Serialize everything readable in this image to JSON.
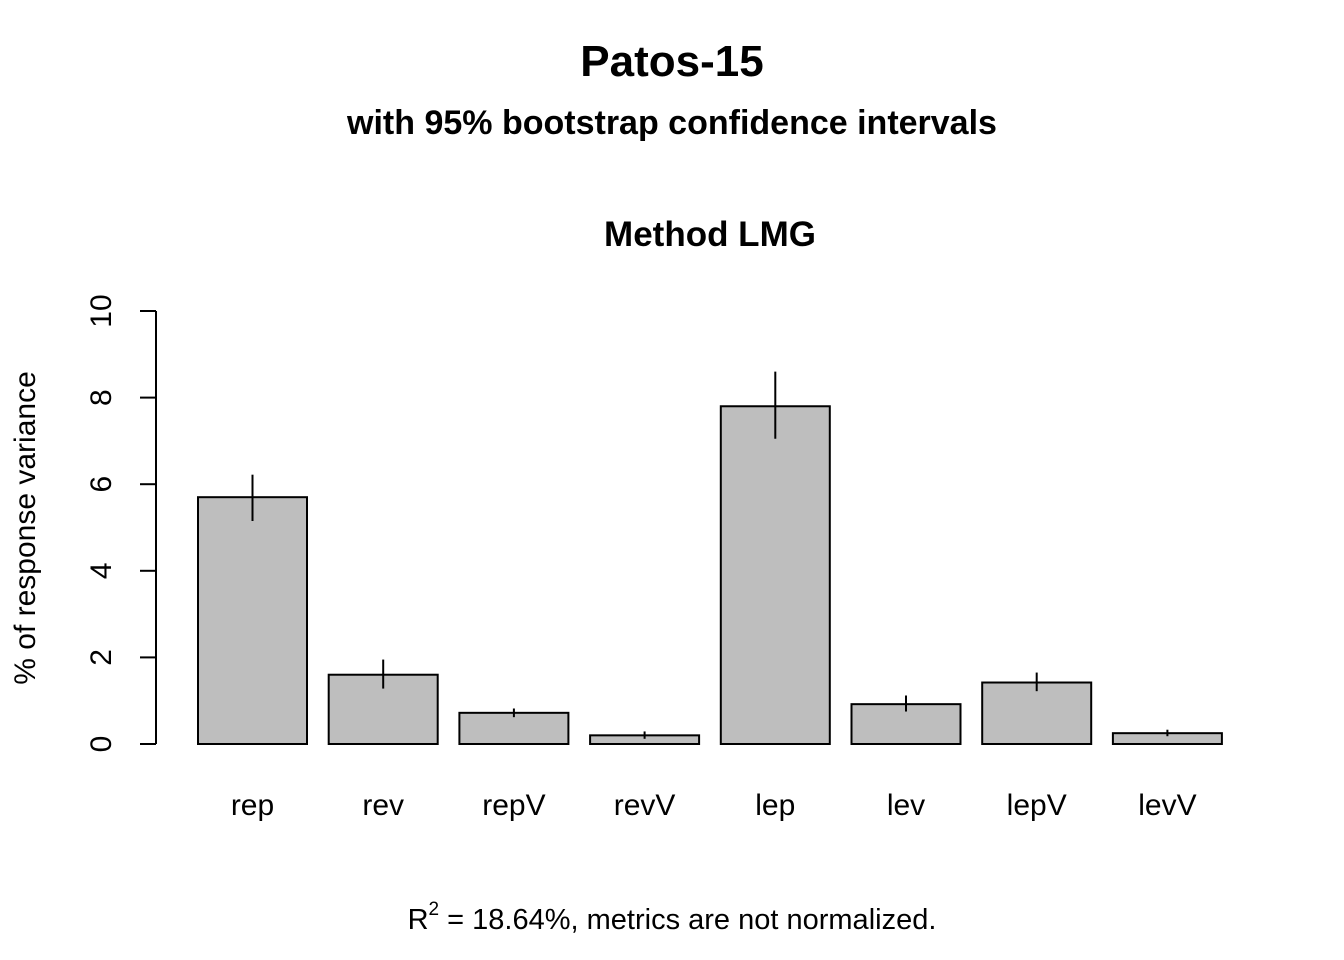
{
  "page": {
    "title": "Patos-15",
    "subtitle": "with 95% bootstrap confidence intervals",
    "footer": {
      "r_symbol": "R",
      "r_superscript": "2",
      "text": " = 18.64%, metrics are not normalized."
    }
  },
  "chart_data": {
    "type": "bar",
    "title": "Method LMG",
    "xlabel": "",
    "ylabel": "% of response variance",
    "ylim": [
      0,
      10
    ],
    "yticks": [
      0,
      2,
      4,
      6,
      8,
      10
    ],
    "grid": false,
    "categories": [
      "rep",
      "rev",
      "repV",
      "revV",
      "lep",
      "lev",
      "lepV",
      "levV"
    ],
    "values": [
      5.7,
      1.6,
      0.72,
      0.2,
      7.8,
      0.92,
      1.42,
      0.25
    ],
    "ci_lower": [
      5.15,
      1.28,
      0.62,
      0.12,
      7.05,
      0.75,
      1.22,
      0.18
    ],
    "ci_upper": [
      6.22,
      1.95,
      0.82,
      0.29,
      8.6,
      1.12,
      1.65,
      0.33
    ],
    "bar_color": "#BEBEBE",
    "edge_color": "#000000"
  }
}
